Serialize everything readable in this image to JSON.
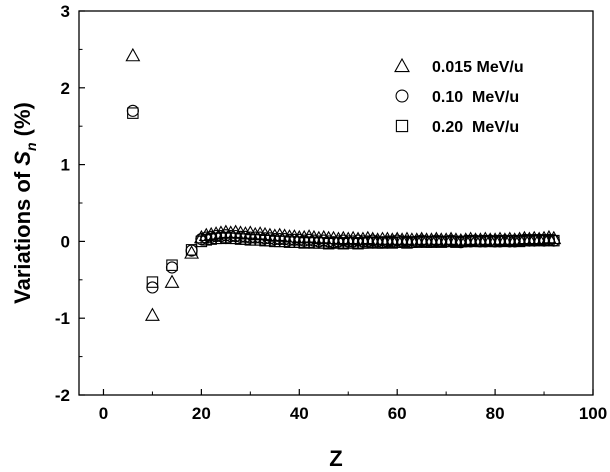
{
  "chart_data": {
    "type": "scatter",
    "title": "",
    "xlabel": "Z",
    "ylabel_main": "Variations of ",
    "ylabel_symbol": "S",
    "ylabel_subscript": "n",
    "ylabel_suffix": " (%)",
    "xlim": [
      -5,
      100
    ],
    "ylim": [
      -2,
      3
    ],
    "xticks": [
      0,
      20,
      40,
      60,
      80,
      100
    ],
    "yticks": [
      -2,
      -1,
      0,
      1,
      2,
      3
    ],
    "xtick_labels": [
      "0",
      "20",
      "40",
      "60",
      "80",
      "100"
    ],
    "ytick_labels": [
      "-2",
      "-1",
      "0",
      "1",
      "2",
      "3"
    ],
    "grid": false,
    "legend_position": "top-right",
    "series": [
      {
        "name": "0.015 MeV/u",
        "marker": "triangle",
        "x": [
          6,
          10,
          14,
          18,
          20,
          21,
          22,
          23,
          24,
          25,
          26,
          27,
          28,
          29,
          30,
          31,
          32,
          33,
          34,
          35,
          36,
          37,
          38,
          39,
          40,
          41,
          42,
          43,
          44,
          45,
          46,
          47,
          48,
          49,
          50,
          51,
          52,
          53,
          54,
          55,
          56,
          57,
          58,
          59,
          60,
          61,
          62,
          63,
          64,
          65,
          66,
          67,
          68,
          69,
          70,
          71,
          72,
          73,
          74,
          75,
          76,
          77,
          78,
          79,
          80,
          81,
          82,
          83,
          84,
          85,
          86,
          87,
          88,
          89,
          90,
          91,
          92
        ],
        "y": [
          2.42,
          -0.96,
          -0.53,
          -0.15,
          0.05,
          0.08,
          0.09,
          0.1,
          0.11,
          0.12,
          0.11,
          0.12,
          0.11,
          0.1,
          0.11,
          0.09,
          0.1,
          0.09,
          0.08,
          0.07,
          0.08,
          0.07,
          0.06,
          0.06,
          0.05,
          0.05,
          0.06,
          0.05,
          0.04,
          0.05,
          0.04,
          0.04,
          0.03,
          0.04,
          0.03,
          0.04,
          0.03,
          0.03,
          0.04,
          0.03,
          0.02,
          0.03,
          0.03,
          0.02,
          0.03,
          0.02,
          0.03,
          0.02,
          0.02,
          0.03,
          0.02,
          0.02,
          0.03,
          0.02,
          0.02,
          0.03,
          0.02,
          0.01,
          0.02,
          0.03,
          0.02,
          0.02,
          0.03,
          0.02,
          0.02,
          0.03,
          0.02,
          0.03,
          0.02,
          0.03,
          0.04,
          0.03,
          0.04,
          0.03,
          0.04,
          0.05,
          0.04
        ]
      },
      {
        "name": "0.10  MeV/u",
        "marker": "circle",
        "x": [
          6,
          10,
          14,
          18,
          20,
          21,
          22,
          23,
          24,
          25,
          26,
          27,
          28,
          29,
          30,
          31,
          32,
          33,
          34,
          35,
          36,
          37,
          38,
          39,
          40,
          41,
          42,
          43,
          44,
          45,
          46,
          47,
          48,
          49,
          50,
          51,
          52,
          53,
          54,
          55,
          56,
          57,
          58,
          59,
          60,
          61,
          62,
          63,
          64,
          65,
          66,
          67,
          68,
          69,
          70,
          71,
          72,
          73,
          74,
          75,
          76,
          77,
          78,
          79,
          80,
          81,
          82,
          83,
          84,
          85,
          86,
          87,
          88,
          89,
          90,
          91,
          92
        ],
        "y": [
          1.7,
          -0.6,
          -0.34,
          -0.12,
          0.03,
          0.05,
          0.06,
          0.07,
          0.07,
          0.08,
          0.07,
          0.07,
          0.06,
          0.06,
          0.05,
          0.05,
          0.05,
          0.04,
          0.04,
          0.03,
          0.03,
          0.03,
          0.02,
          0.02,
          0.02,
          0.01,
          0.02,
          0.01,
          0.0,
          0.01,
          0.0,
          -0.01,
          0.0,
          0.01,
          0.0,
          0.0,
          0.01,
          0.0,
          0.0,
          0.01,
          0.0,
          -0.01,
          0.0,
          0.0,
          0.01,
          0.0,
          0.0,
          -0.01,
          0.0,
          0.01,
          0.0,
          0.0,
          0.01,
          0.0,
          0.0,
          0.01,
          0.0,
          -0.01,
          0.0,
          0.0,
          0.01,
          0.0,
          0.0,
          0.01,
          0.0,
          0.0,
          0.01,
          0.0,
          0.0,
          0.01,
          0.02,
          0.01,
          0.01,
          0.02,
          0.01,
          0.02,
          0.01
        ]
      },
      {
        "name": "0.20  MeV/u",
        "marker": "square",
        "x": [
          6,
          10,
          14,
          18,
          20,
          21,
          22,
          23,
          24,
          25,
          26,
          27,
          28,
          29,
          30,
          31,
          32,
          33,
          34,
          35,
          36,
          37,
          38,
          39,
          40,
          41,
          42,
          43,
          44,
          45,
          46,
          47,
          48,
          49,
          50,
          51,
          52,
          53,
          54,
          55,
          56,
          57,
          58,
          59,
          60,
          61,
          62,
          63,
          64,
          65,
          66,
          67,
          68,
          69,
          70,
          71,
          72,
          73,
          74,
          75,
          76,
          77,
          78,
          79,
          80,
          81,
          82,
          83,
          84,
          85,
          86,
          87,
          88,
          89,
          90,
          91,
          92
        ],
        "y": [
          1.67,
          -0.53,
          -0.31,
          -0.11,
          0.0,
          0.02,
          0.03,
          0.04,
          0.04,
          0.05,
          0.04,
          0.04,
          0.03,
          0.03,
          0.02,
          0.02,
          0.02,
          0.01,
          0.01,
          0.0,
          0.0,
          0.0,
          -0.01,
          -0.01,
          -0.01,
          -0.02,
          -0.01,
          -0.02,
          -0.02,
          -0.02,
          -0.03,
          -0.02,
          -0.02,
          -0.03,
          -0.02,
          -0.02,
          -0.03,
          -0.02,
          -0.02,
          -0.01,
          -0.02,
          -0.02,
          -0.01,
          -0.02,
          -0.01,
          -0.01,
          -0.02,
          -0.01,
          -0.01,
          0.0,
          -0.01,
          -0.01,
          0.0,
          -0.01,
          0.0,
          0.0,
          -0.01,
          0.0,
          0.0,
          0.01,
          0.0,
          0.0,
          0.01,
          0.0,
          0.0,
          0.01,
          0.0,
          0.01,
          0.01,
          0.0,
          0.01,
          0.02,
          0.01,
          0.02,
          0.01,
          0.02,
          0.01
        ]
      }
    ]
  }
}
